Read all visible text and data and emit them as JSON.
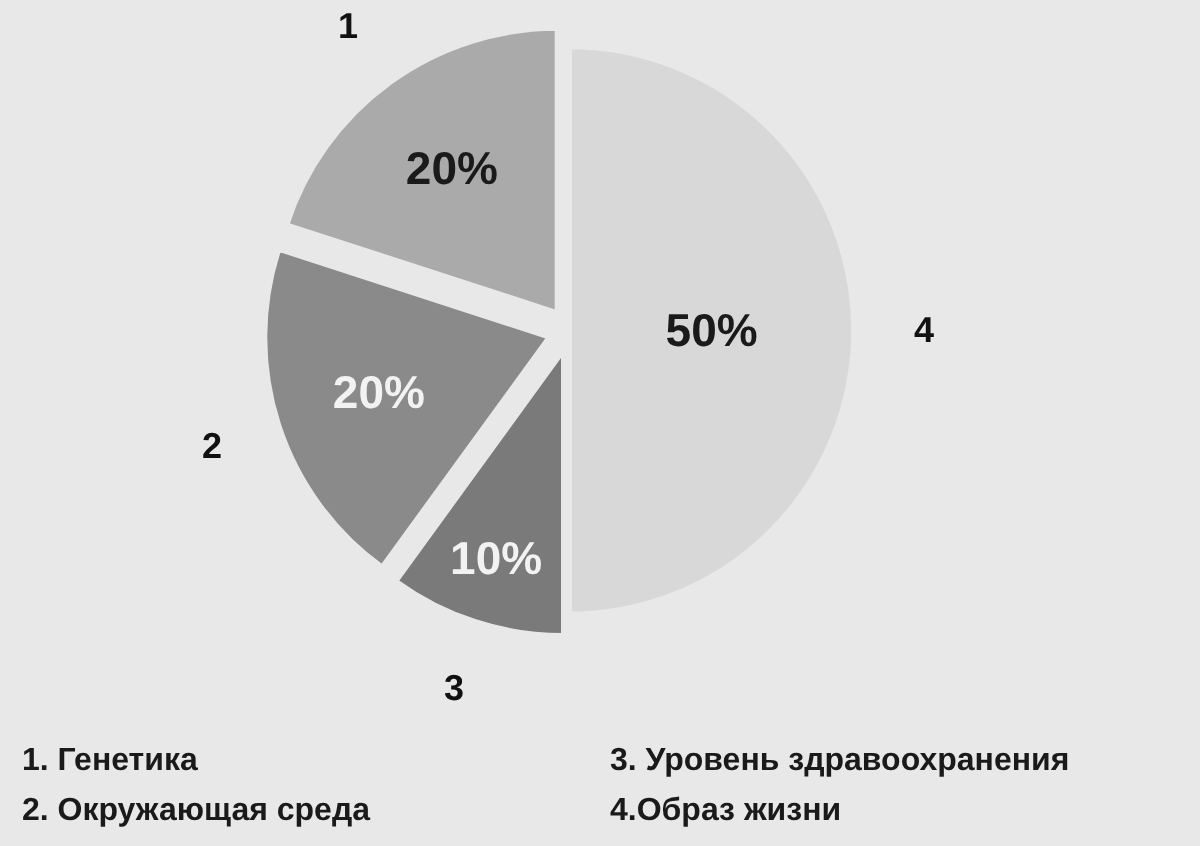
{
  "chart_data": {
    "type": "pie",
    "categories": [
      "1",
      "2",
      "3",
      "4"
    ],
    "values": [
      20,
      20,
      10,
      50
    ],
    "colors": [
      "#aaaaaa",
      "#8a8a8a",
      "#7a7a7a",
      "#d8d8d8"
    ],
    "value_labels": [
      "20%",
      "20%",
      "10%",
      "50%"
    ],
    "annotations": [
      "1. Генетика",
      "2. Окружающая среда",
      "3. Уровень здравоохранения",
      "4.Образ жизни"
    ]
  }
}
